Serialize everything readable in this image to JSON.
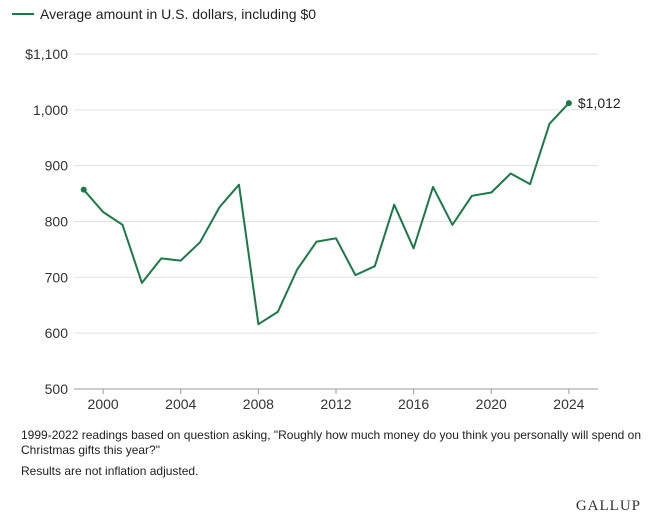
{
  "legend": {
    "label": "Average amount in U.S. dollars, including $0",
    "color": "#1a7a47"
  },
  "chart_data": {
    "type": "line",
    "title": "",
    "xlabel": "",
    "ylabel": "",
    "xlim": [
      1998.5,
      2025.5
    ],
    "ylim": [
      500,
      1100
    ],
    "yticks": [
      500,
      600,
      700,
      800,
      900,
      1000,
      1100
    ],
    "ytick_labels": [
      "500",
      "600",
      "700",
      "800",
      "900",
      "1,000",
      "$1,100"
    ],
    "xticks": [
      2000,
      2004,
      2008,
      2012,
      2016,
      2020,
      2024
    ],
    "xtick_labels": [
      "2000",
      "2004",
      "2008",
      "2012",
      "2016",
      "2020",
      "2024"
    ],
    "grid": true,
    "series": [
      {
        "name": "Average amount in U.S. dollars, including $0",
        "color": "#1a7a47",
        "x": [
          1999,
          2000,
          2001,
          2002,
          2003,
          2004,
          2005,
          2006,
          2007,
          2008,
          2009,
          2010,
          2011,
          2012,
          2013,
          2014,
          2015,
          2016,
          2017,
          2018,
          2019,
          2020,
          2021,
          2022,
          2023,
          2024
        ],
        "y": [
          857,
          817,
          794,
          690,
          734,
          730,
          763,
          826,
          866,
          616,
          638,
          714,
          764,
          770,
          704,
          720,
          830,
          752,
          862,
          794,
          846,
          852,
          886,
          867,
          975,
          1012
        ]
      }
    ],
    "annotations": [
      {
        "x": 2024,
        "y": 1012,
        "text": "$1,012"
      }
    ]
  },
  "notes": {
    "note1": "1999-2022 readings based on question asking, \"Roughly how much money do you think you personally will spend on Christmas gifts this year?\"",
    "note2": "Results are not inflation adjusted."
  },
  "logo": "GALLUP"
}
